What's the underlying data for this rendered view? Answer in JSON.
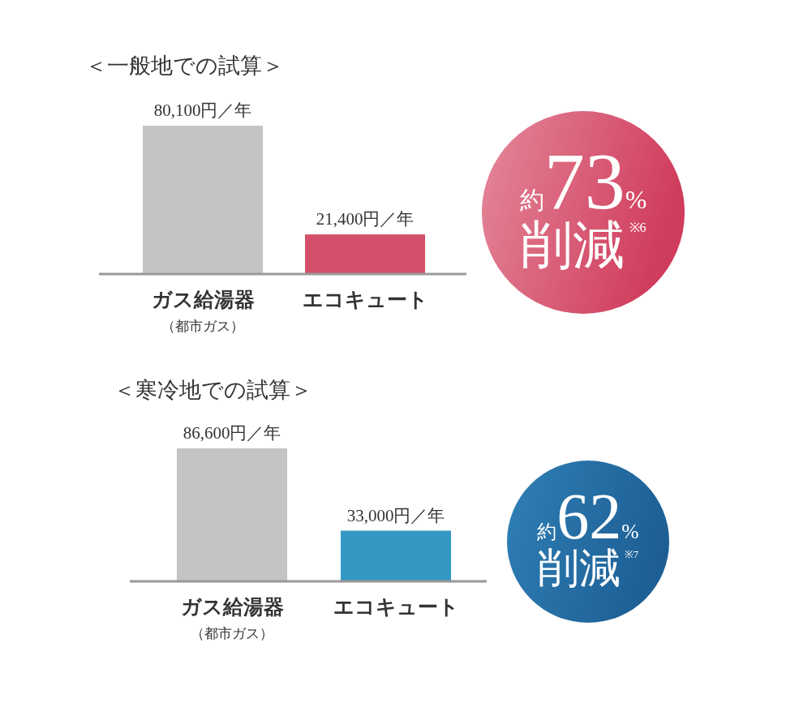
{
  "chart_data": [
    {
      "type": "bar",
      "title": "＜一般地での試算＞",
      "categories": [
        "ガス給湯器（都市ガス）",
        "エコキュート"
      ],
      "values": [
        80100,
        21400
      ],
      "colors": [
        "#c4c4c4",
        "#d4506a"
      ],
      "value_labels": [
        "80,100円／年",
        "21,400円／年"
      ],
      "annotations": [
        "約73%削減$^{※6}$"
      ]
    },
    {
      "type": "bar",
      "title": "＜寒冷地での試算＞",
      "categories": [
        "ガス給湯器（都市ガス）",
        "エコキュート"
      ],
      "values": [
        86600,
        33000
      ],
      "colors": [
        "#c4c4c4",
        "#3399c4"
      ],
      "value_labels": [
        "86,600円／年",
        "33,000円／年"
      ],
      "annotations": [
        "約62%削減$^{※7}$"
      ]
    }
  ]
}
